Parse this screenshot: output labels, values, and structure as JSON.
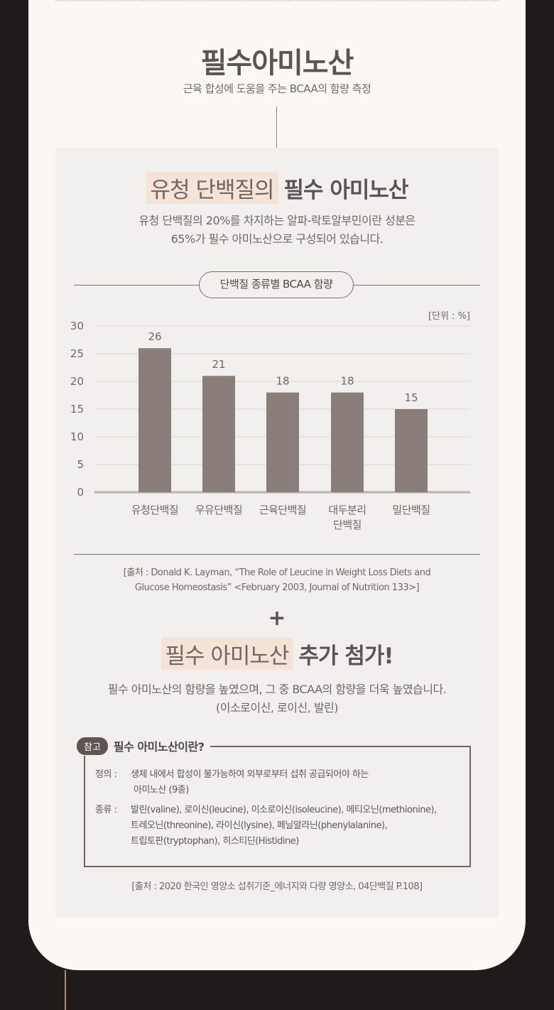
{
  "header": {
    "title": "필수아미노산",
    "subtitle": "근육 합성에 도움을 주는 BCAA의 함량 측정"
  },
  "section1": {
    "title_highlight": "유청 단백질의",
    "title_bold": "필수 아미노산",
    "desc_line1": "유청 단백질의 20%를 차지하는 알파-락토알부민이란 성분은",
    "desc_line2": "65%가 필수 아미노산으로 구성되어 있습니다."
  },
  "chart_data": {
    "type": "bar",
    "title": "단백질 종류별 BCAA 함량",
    "unit_label": "[단위 : %]",
    "categories": [
      "유청단백질",
      "우유단백질",
      "근육단백질",
      "대두분리 단백질",
      "밀단백질"
    ],
    "category_lines": [
      [
        "유청단백질"
      ],
      [
        "우유단백질"
      ],
      [
        "근육단백질"
      ],
      [
        "대두분리",
        "단백질"
      ],
      [
        "밀단백질"
      ]
    ],
    "values": [
      26,
      21,
      18,
      18,
      15
    ],
    "ylim": [
      0,
      30
    ],
    "yticks": [
      0,
      5,
      10,
      15,
      20,
      25,
      30
    ],
    "bar_color": "#897e79",
    "grid": true
  },
  "source1": {
    "line1": "[출처 : Donald K. Layman, “The Role of Leucine in Weight Loss Diets and",
    "line2": "Glucose Homeostasis” <February 2003, Journal of Nutrition 133>]"
  },
  "section2": {
    "plus": "+",
    "title_highlight": "필수 아미노산",
    "title_bold": "추가 첨가!",
    "desc_line1": "필수 아미노산의 함량을 높였으며, 그 중 BCAA의 함량을 더욱 높였습니다.",
    "desc_line2": "(이소로이신, 로이신, 발린)"
  },
  "reference": {
    "badge": "참고",
    "title": "필수 아미노산이란?",
    "def_key": "정의 :",
    "def_line1": "생체 내에서 합성이 불가능하여 외부로부터 섭취 공급되어야 하는",
    "def_line2": "아미노산 (9종)",
    "kind_key": "종류 :",
    "kind_line1": "발린(valine), 로이신(leucine), 이소로이신(isoleucine), 메티오닌(methionine),",
    "kind_line2": "트레오닌(threonine), 라이신(lysine), 페닐알라닌(phenylalanine),",
    "kind_line3": "트립토판(tryptophan), 히스티딘(Histidine)"
  },
  "source2": "[출처 : 2020 한국인 영양소 섭취기준_에너지와 다량 영양소, 04단백질 P.108]"
}
